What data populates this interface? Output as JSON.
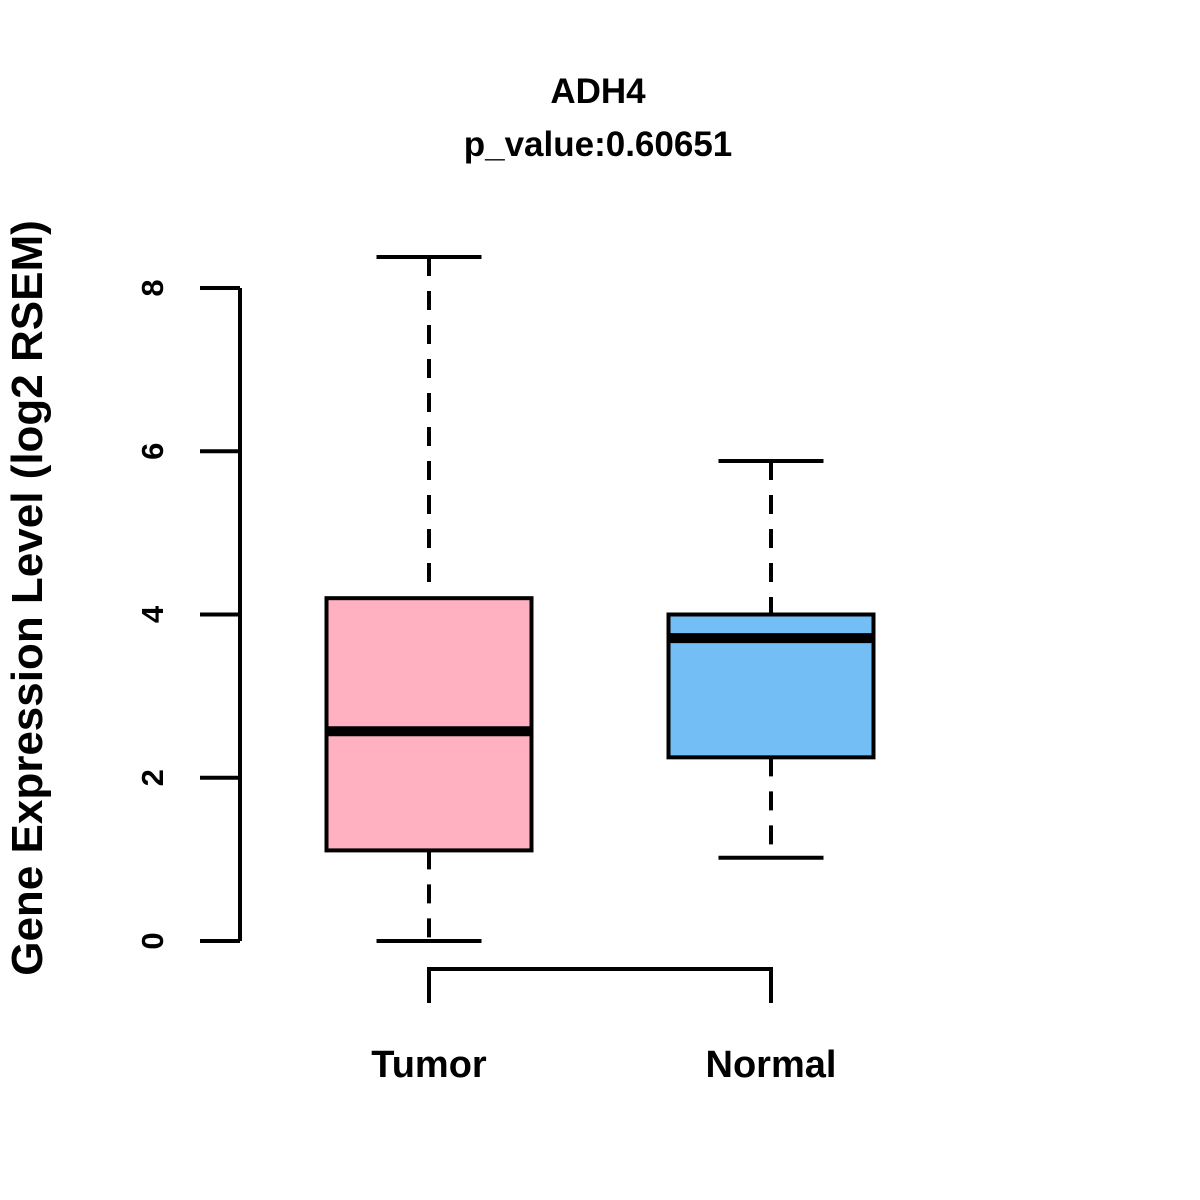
{
  "chart_data": {
    "type": "boxplot",
    "title": "ADH4",
    "subtitle": "p_value:0.60651",
    "ylabel": "Gene Expression Level (log2 RSEM)",
    "xlabel": "",
    "categories": [
      "Tumor",
      "Normal"
    ],
    "yticks": [
      0,
      2,
      4,
      6,
      8
    ],
    "ylim": [
      0,
      8
    ],
    "grid": false,
    "legend": "none",
    "colors": {
      "tumor_fill": "#FFB0C1",
      "normal_fill": "#73BEF5",
      "line": "#000000",
      "background": "#FFFFFF"
    },
    "series": [
      {
        "name": "Tumor",
        "color": "#FFB0C1",
        "whisker_low": 0.0,
        "q1": 1.11,
        "median": 2.57,
        "q3": 4.2,
        "whisker_high": 8.38,
        "outliers": []
      },
      {
        "name": "Normal",
        "color": "#73BEF5",
        "whisker_low": 1.02,
        "q1": 2.25,
        "median": 3.71,
        "q3": 4.0,
        "whisker_high": 5.88,
        "outliers": []
      }
    ]
  }
}
